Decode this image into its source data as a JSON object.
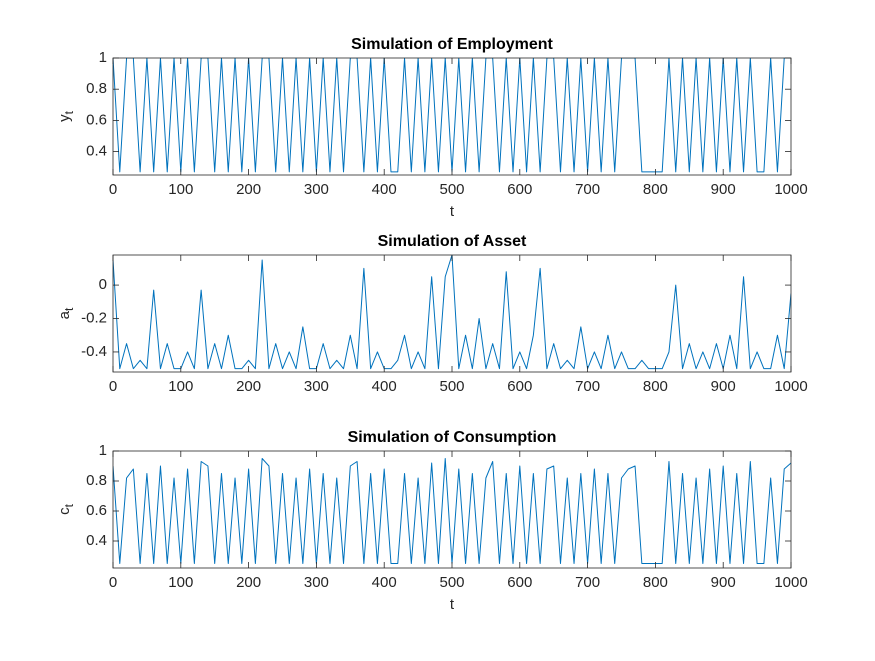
{
  "chart_data": [
    {
      "type": "line",
      "title": "Simulation of Employment",
      "xlabel": "t",
      "ylabel": "y",
      "ylabel_subscript": "t",
      "color": "#0072bd",
      "x": [
        0,
        10,
        20,
        30,
        40,
        50,
        60,
        70,
        80,
        90,
        100,
        110,
        120,
        130,
        140,
        150,
        160,
        170,
        180,
        190,
        200,
        210,
        220,
        230,
        240,
        250,
        260,
        270,
        280,
        290,
        300,
        310,
        320,
        330,
        340,
        350,
        360,
        370,
        380,
        390,
        400,
        410,
        420,
        430,
        440,
        450,
        460,
        470,
        480,
        490,
        500,
        510,
        520,
        530,
        540,
        550,
        560,
        570,
        580,
        590,
        600,
        610,
        620,
        630,
        640,
        650,
        660,
        670,
        680,
        690,
        700,
        710,
        720,
        730,
        740,
        750,
        760,
        770,
        780,
        790,
        800,
        810,
        820,
        830,
        840,
        850,
        860,
        870,
        880,
        890,
        900,
        910,
        920,
        930,
        940,
        950,
        960,
        970,
        980,
        990,
        1000
      ],
      "values": [
        1,
        0.27,
        1,
        1,
        0.27,
        1,
        0.27,
        1,
        0.27,
        1,
        0.27,
        1,
        0.27,
        1,
        1,
        0.27,
        1,
        0.27,
        1,
        0.27,
        1,
        0.27,
        1,
        1,
        0.27,
        1,
        0.27,
        1,
        0.27,
        1,
        0.27,
        1,
        0.27,
        1,
        0.27,
        1,
        1,
        0.27,
        1,
        0.27,
        1,
        0.27,
        0.27,
        1,
        0.27,
        1,
        0.27,
        1,
        0.27,
        1,
        0.27,
        1,
        0.27,
        1,
        0.27,
        1,
        1,
        0.27,
        1,
        0.27,
        1,
        0.27,
        1,
        0.27,
        1,
        1,
        0.27,
        1,
        0.27,
        1,
        0.27,
        1,
        0.27,
        1,
        0.27,
        1,
        1,
        1,
        0.27,
        0.27,
        0.27,
        0.27,
        1,
        0.27,
        1,
        0.27,
        1,
        0.27,
        1,
        0.27,
        1,
        0.27,
        1,
        0.27,
        1,
        0.27,
        0.27,
        1,
        0.27,
        1,
        1
      ],
      "xlim": [
        0,
        1000
      ],
      "xticks": [
        0,
        100,
        200,
        300,
        400,
        500,
        600,
        700,
        800,
        900,
        1000
      ],
      "ylim": [
        0.25,
        1
      ],
      "yticks": [
        0.4,
        0.6,
        0.8,
        1
      ]
    },
    {
      "type": "line",
      "title": "Simulation of Asset",
      "ylabel": "a",
      "ylabel_subscript": "t",
      "color": "#0072bd",
      "x": [
        0,
        10,
        20,
        30,
        40,
        50,
        60,
        70,
        80,
        90,
        100,
        110,
        120,
        130,
        140,
        150,
        160,
        170,
        180,
        190,
        200,
        210,
        220,
        230,
        240,
        250,
        260,
        270,
        280,
        290,
        300,
        310,
        320,
        330,
        340,
        350,
        360,
        370,
        380,
        390,
        400,
        410,
        420,
        430,
        440,
        450,
        460,
        470,
        480,
        490,
        500,
        510,
        520,
        530,
        540,
        550,
        560,
        570,
        580,
        590,
        600,
        610,
        620,
        630,
        640,
        650,
        660,
        670,
        680,
        690,
        700,
        710,
        720,
        730,
        740,
        750,
        760,
        770,
        780,
        790,
        800,
        810,
        820,
        830,
        840,
        850,
        860,
        870,
        880,
        890,
        900,
        910,
        920,
        930,
        940,
        950,
        960,
        970,
        980,
        990,
        1000
      ],
      "values": [
        0.15,
        -0.5,
        -0.35,
        -0.5,
        -0.45,
        -0.5,
        -0.03,
        -0.5,
        -0.35,
        -0.5,
        -0.5,
        -0.4,
        -0.5,
        -0.03,
        -0.5,
        -0.35,
        -0.5,
        -0.3,
        -0.5,
        -0.5,
        -0.45,
        -0.5,
        0.15,
        -0.5,
        -0.35,
        -0.5,
        -0.4,
        -0.5,
        -0.25,
        -0.5,
        -0.5,
        -0.35,
        -0.5,
        -0.45,
        -0.5,
        -0.3,
        -0.5,
        0.1,
        -0.5,
        -0.4,
        -0.5,
        -0.5,
        -0.45,
        -0.3,
        -0.5,
        -0.4,
        -0.5,
        0.05,
        -0.5,
        0.05,
        0.18,
        -0.5,
        -0.3,
        -0.5,
        -0.2,
        -0.5,
        -0.35,
        -0.5,
        0.08,
        -0.5,
        -0.4,
        -0.5,
        -0.3,
        0.1,
        -0.5,
        -0.35,
        -0.5,
        -0.45,
        -0.5,
        -0.25,
        -0.5,
        -0.4,
        -0.5,
        -0.3,
        -0.5,
        -0.4,
        -0.5,
        -0.5,
        -0.45,
        -0.5,
        -0.5,
        -0.5,
        -0.4,
        0.0,
        -0.5,
        -0.35,
        -0.5,
        -0.4,
        -0.5,
        -0.35,
        -0.5,
        -0.3,
        -0.5,
        0.05,
        -0.5,
        -0.4,
        -0.5,
        -0.5,
        -0.3,
        -0.5,
        -0.05
      ],
      "xlim": [
        0,
        1000
      ],
      "xticks": [
        0,
        100,
        200,
        300,
        400,
        500,
        600,
        700,
        800,
        900,
        1000
      ],
      "ylim": [
        -0.52,
        0.18
      ],
      "yticks": [
        -0.4,
        -0.2,
        0
      ]
    },
    {
      "type": "line",
      "title": "Simulation of Consumption",
      "xlabel": "t",
      "ylabel": "c",
      "ylabel_subscript": "t",
      "color": "#0072bd",
      "x": [
        0,
        10,
        20,
        30,
        40,
        50,
        60,
        70,
        80,
        90,
        100,
        110,
        120,
        130,
        140,
        150,
        160,
        170,
        180,
        190,
        200,
        210,
        220,
        230,
        240,
        250,
        260,
        270,
        280,
        290,
        300,
        310,
        320,
        330,
        340,
        350,
        360,
        370,
        380,
        390,
        400,
        410,
        420,
        430,
        440,
        450,
        460,
        470,
        480,
        490,
        500,
        510,
        520,
        530,
        540,
        550,
        560,
        570,
        580,
        590,
        600,
        610,
        620,
        630,
        640,
        650,
        660,
        670,
        680,
        690,
        700,
        710,
        720,
        730,
        740,
        750,
        760,
        770,
        780,
        790,
        800,
        810,
        820,
        830,
        840,
        850,
        860,
        870,
        880,
        890,
        900,
        910,
        920,
        930,
        940,
        950,
        960,
        970,
        980,
        990,
        1000
      ],
      "values": [
        0.9,
        0.25,
        0.82,
        0.88,
        0.25,
        0.85,
        0.25,
        0.9,
        0.25,
        0.82,
        0.25,
        0.88,
        0.25,
        0.93,
        0.9,
        0.25,
        0.85,
        0.25,
        0.82,
        0.25,
        0.88,
        0.25,
        0.95,
        0.9,
        0.25,
        0.85,
        0.25,
        0.82,
        0.25,
        0.88,
        0.25,
        0.85,
        0.25,
        0.82,
        0.25,
        0.9,
        0.93,
        0.25,
        0.85,
        0.25,
        0.88,
        0.25,
        0.25,
        0.85,
        0.25,
        0.82,
        0.25,
        0.92,
        0.25,
        0.95,
        0.25,
        0.88,
        0.25,
        0.85,
        0.25,
        0.82,
        0.93,
        0.25,
        0.85,
        0.25,
        0.9,
        0.25,
        0.85,
        0.25,
        0.88,
        0.9,
        0.25,
        0.82,
        0.25,
        0.85,
        0.25,
        0.88,
        0.25,
        0.85,
        0.25,
        0.82,
        0.88,
        0.9,
        0.25,
        0.25,
        0.25,
        0.25,
        0.93,
        0.25,
        0.85,
        0.25,
        0.82,
        0.25,
        0.88,
        0.25,
        0.9,
        0.25,
        0.85,
        0.25,
        0.93,
        0.25,
        0.25,
        0.82,
        0.25,
        0.88,
        0.92
      ],
      "xlim": [
        0,
        1000
      ],
      "xticks": [
        0,
        100,
        200,
        300,
        400,
        500,
        600,
        700,
        800,
        900,
        1000
      ],
      "ylim": [
        0.22,
        1
      ],
      "yticks": [
        0.4,
        0.6,
        0.8,
        1
      ]
    }
  ]
}
